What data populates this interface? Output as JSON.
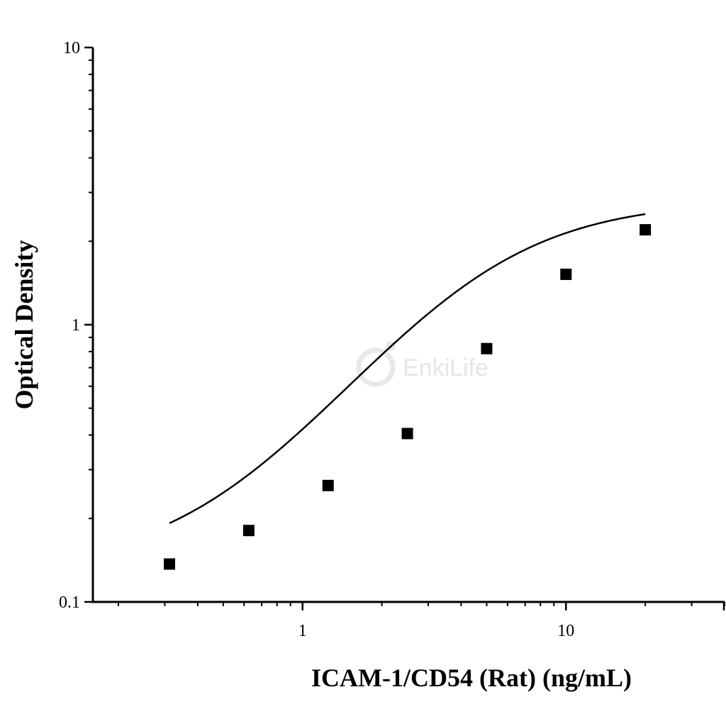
{
  "chart_data": {
    "type": "scatter",
    "title": "",
    "xlabel": "ICAM-1/CD54 (Rat) (ng/mL)",
    "ylabel": "Optical Density",
    "xscale": "log",
    "yscale": "log",
    "xlim": [
      0.16,
      40
    ],
    "ylim": [
      0.1,
      10
    ],
    "xticks": [
      1,
      10
    ],
    "xtick_labels": [
      "1",
      "10"
    ],
    "yticks": [
      0.1,
      1,
      10
    ],
    "ytick_labels": [
      "0.1",
      "1",
      "10"
    ],
    "grid": false,
    "legend": "none",
    "series": [
      {
        "marker": "square",
        "x": [
          0.3125,
          0.625,
          1.25,
          2.5,
          5,
          10,
          20
        ],
        "y": [
          0.137,
          0.181,
          0.263,
          0.405,
          0.82,
          1.52,
          2.2
        ]
      }
    ],
    "fit_curve": {
      "model": "4PL",
      "bottom": 0.13,
      "top": 2.8,
      "ec50": 4.5,
      "hill": 1.4,
      "x_range": [
        0.3125,
        20
      ]
    },
    "watermark": "EnkiLife",
    "colors": {
      "marker": "#000000",
      "line": "#000000",
      "watermark": "#e6e6e6"
    }
  }
}
